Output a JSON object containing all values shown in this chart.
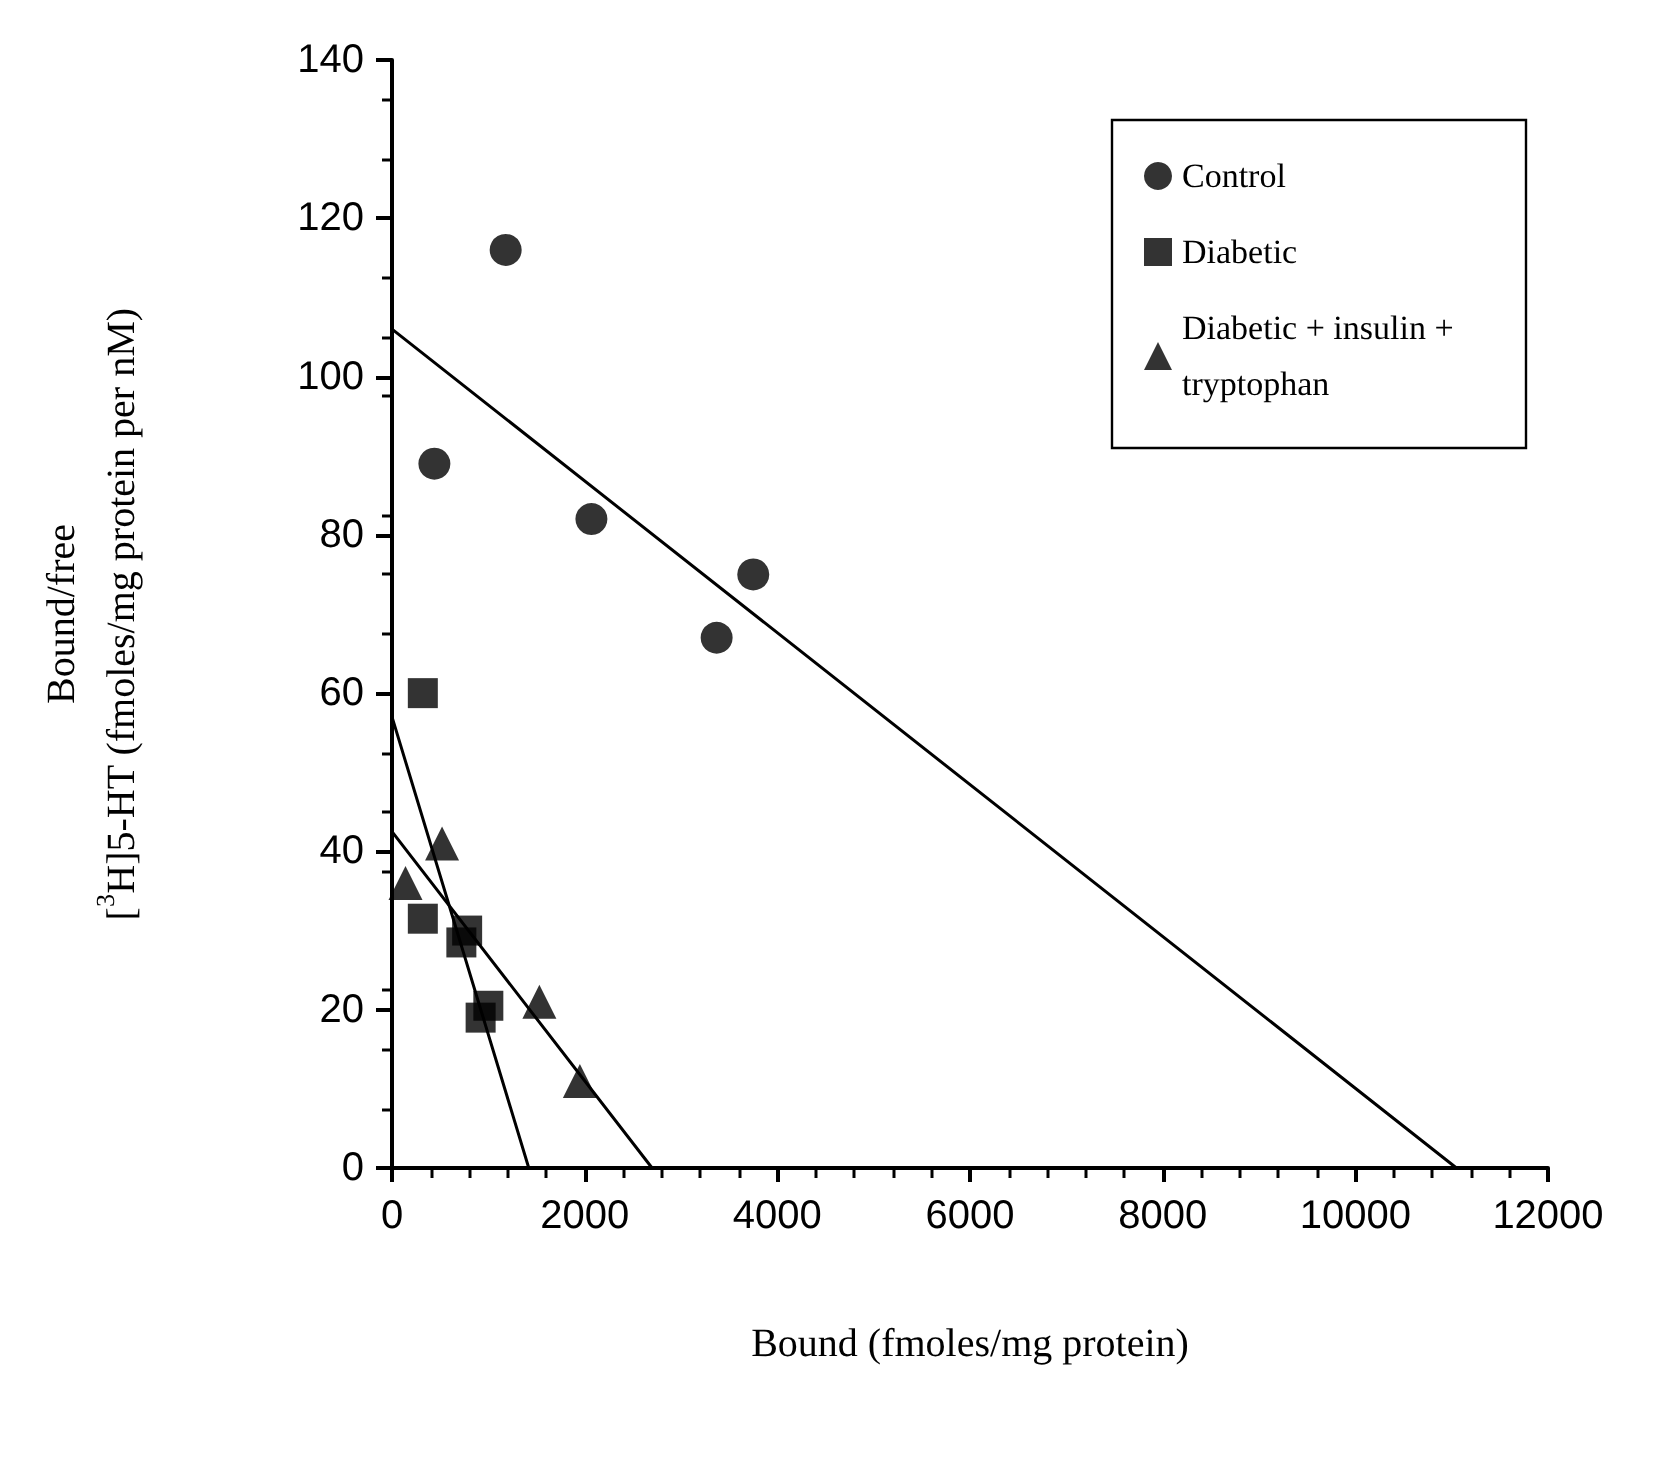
{
  "chart_data": {
    "type": "scatter",
    "xlabel": "Bound (fmoles/mg protein)",
    "ylabel": "Bound/free\n[$^{3}$H]5-HT (fmoles/mg protein per nM)",
    "series": [
      {
        "name": "Control",
        "color": "#000000",
        "marker": "circle",
        "x": [
          1180,
          440,
          2070,
          3750,
          3370
        ],
        "values": [
          116,
          89,
          82,
          75,
          67
        ]
      },
      {
        "name": "Diabetic",
        "color": "#000000",
        "marker": "square",
        "x": [
          320,
          320,
          780,
          720,
          1000,
          920
        ],
        "values": [
          60,
          31.5,
          30,
          28.5,
          20.5,
          19
        ]
      },
      {
        "name": "Diabetic + insulin + tryptophan",
        "color": "#000000",
        "marker": "triangle",
        "x": [
          140,
          520,
          1530,
          1950
        ],
        "values": [
          36,
          41,
          21,
          11
        ]
      },
      {
        "type": "line",
        "color": "#000000",
        "marker": "none",
        "x": [
          0,
          11050
        ],
        "values": [
          106,
          0
        ]
      },
      {
        "type": "line",
        "color": "#000000",
        "marker": "none",
        "x": [
          0,
          1420
        ],
        "values": [
          57,
          0
        ]
      },
      {
        "type": "line",
        "color": "#000000",
        "marker": "none",
        "x": [
          0,
          2700
        ],
        "values": [
          42.5,
          0
        ]
      }
    ],
    "xlim": [
      0,
      12000
    ],
    "xticks": [
      0,
      2000,
      4000,
      6000,
      8000,
      10000,
      12000
    ],
    "ylim": [
      0,
      140
    ],
    "yticks": [
      0,
      20,
      40,
      60,
      80,
      100,
      120,
      140
    ],
    "legend": "top right",
    "grid": false
  }
}
